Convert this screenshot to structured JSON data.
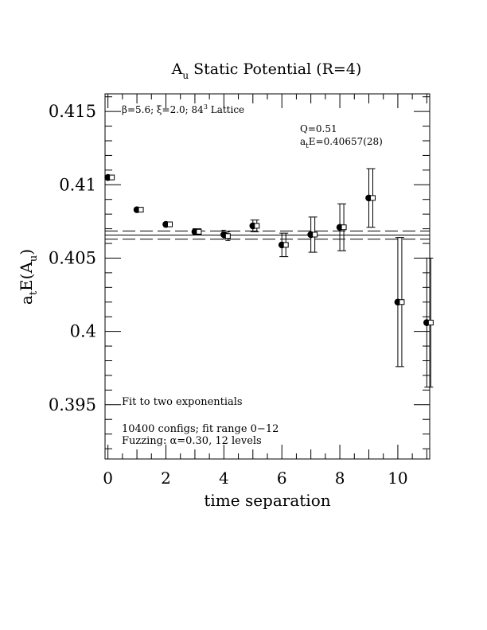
{
  "chart_data": {
    "type": "scatter",
    "title": "Static Potential (R=4)",
    "title_symbol": "A",
    "title_symbol_sub": "u",
    "xlabel": "time separation",
    "ylabel": "E(A",
    "ylabel_prefix": "a",
    "ylabel_prefix_sub": "t",
    "ylabel_inner_sub": "u",
    "ylabel_close": ")",
    "xlim": [
      -0.1,
      11.1
    ],
    "ylim": [
      0.3913,
      0.4162
    ],
    "x_major_ticks": [
      0,
      2,
      4,
      6,
      8,
      10
    ],
    "x_tick_labels": [
      "0",
      "2",
      "4",
      "6",
      "8",
      "10"
    ],
    "y_major_ticks": [
      0.395,
      0.4,
      0.405,
      0.41,
      0.415
    ],
    "y_tick_labels": [
      "0.395",
      "0.4",
      "0.405",
      "0.41",
      "0.415"
    ],
    "series": [
      {
        "marker": "filled-circle",
        "x": [
          0,
          1,
          2,
          3,
          4,
          5,
          6,
          7,
          8,
          9,
          10,
          11
        ],
        "y": [
          0.4105,
          0.4083,
          0.4073,
          0.4068,
          0.4066,
          0.4072,
          0.4059,
          0.4066,
          0.4071,
          0.4091,
          0.402,
          0.4006
        ],
        "err": [
          0.0001,
          0.0001,
          0.0001,
          0.0002,
          0.0003,
          0.0004,
          0.0008,
          0.0012,
          0.0016,
          0.002,
          0.0044,
          0.0044
        ]
      },
      {
        "marker": "open-square",
        "x": [
          0,
          1,
          2,
          3,
          4,
          5,
          6,
          7,
          8,
          9,
          10,
          11
        ],
        "y": [
          0.4105,
          0.4083,
          0.4073,
          0.4068,
          0.4065,
          0.4072,
          0.4059,
          0.4066,
          0.4071,
          0.4091,
          0.402,
          0.4006
        ],
        "err": [
          0.0001,
          0.0001,
          0.0001,
          0.0002,
          0.0003,
          0.0004,
          0.0008,
          0.0012,
          0.0016,
          0.002,
          0.0044,
          0.0044
        ]
      }
    ],
    "fit": {
      "value": 0.40657,
      "error": 0.00028
    },
    "annotations": {
      "lattice_beta": "β=5.6; ξ=2.0; 84",
      "lattice_sup": "3",
      "lattice_tail": " Lattice",
      "q_value": "Q=0.51",
      "energy_prefix": "a",
      "energy_sub": "t",
      "energy_value": "E=0.40657(28)",
      "fit_type": "Fit to two exponentials",
      "configs": "10400 configs; fit range 0−12",
      "fuzzing": "Fuzzing: α=0.30, 12 levels"
    }
  }
}
